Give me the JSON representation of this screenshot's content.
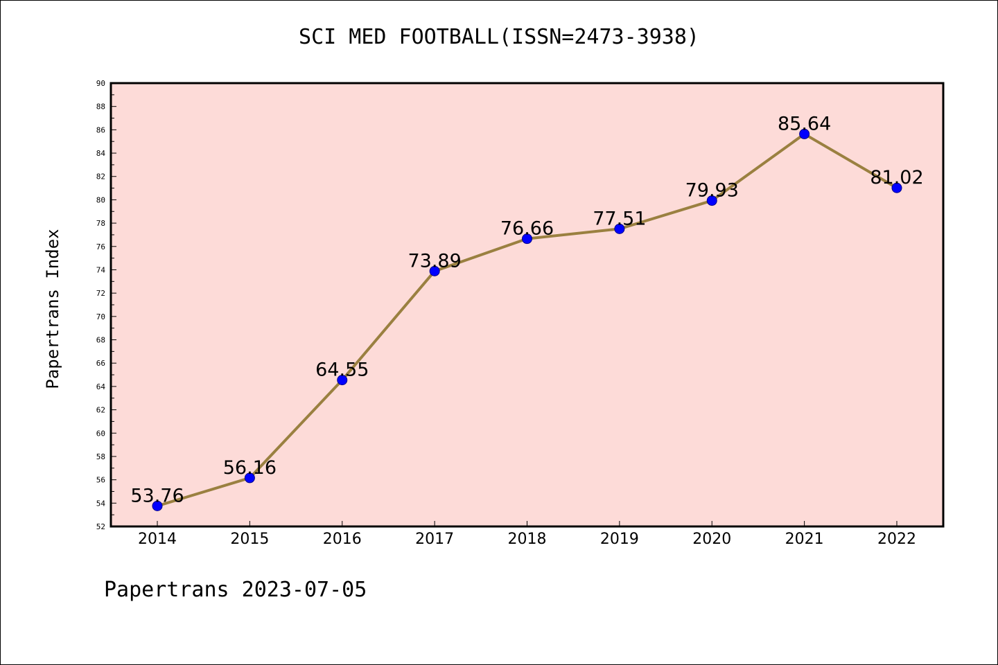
{
  "chart_data": {
    "type": "line",
    "title": "SCI MED FOOTBALL(ISSN=2473-3938)",
    "xlabel": "",
    "ylabel": "Papertrans Index",
    "categories": [
      "2014",
      "2015",
      "2016",
      "2017",
      "2018",
      "2019",
      "2020",
      "2021",
      "2022"
    ],
    "series": [
      {
        "values": [
          53.76,
          56.16,
          64.55,
          73.89,
          76.66,
          77.51,
          79.93,
          85.64,
          81.02
        ],
        "labels": [
          "53.76",
          "56.16",
          "64.55",
          "73.89",
          "76.66",
          "77.51",
          "79.93",
          "85.64",
          "81.02"
        ]
      }
    ],
    "ylim": [
      52,
      90
    ],
    "yticks": [
      "52",
      "54",
      "56",
      "58",
      "60",
      "62",
      "64",
      "66",
      "68",
      "70",
      "72",
      "74",
      "76",
      "78",
      "80",
      "82",
      "84",
      "86",
      "88",
      "90"
    ],
    "grid": false,
    "legend": "none",
    "colors": {
      "plot_background": "#fddbd8",
      "line": "#9a8040",
      "marker": "#0000ff",
      "marker_edge": "#00008b"
    }
  },
  "footer": {
    "note": "Papertrans 2023-07-05"
  }
}
